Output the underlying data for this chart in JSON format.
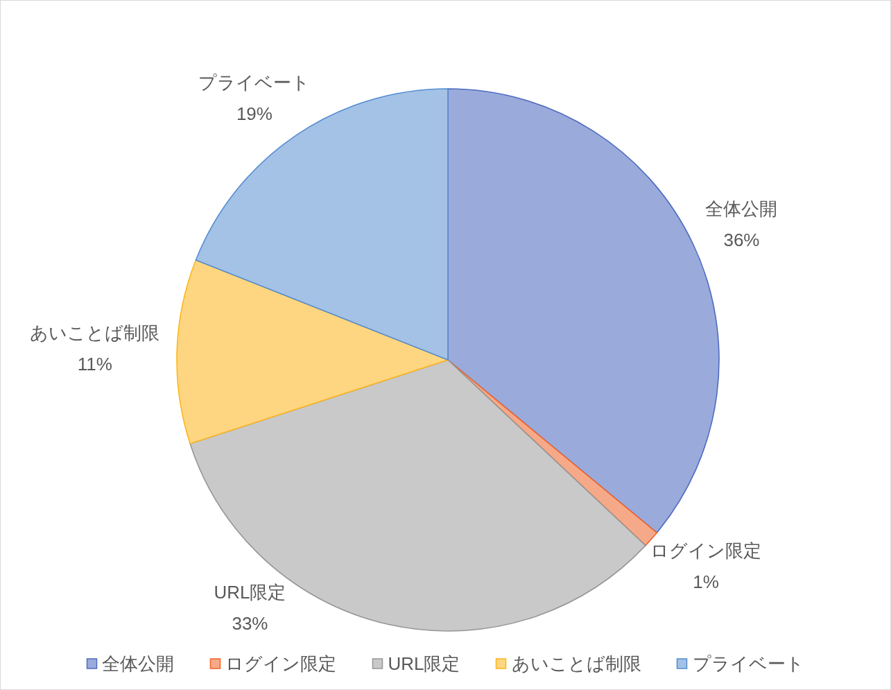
{
  "chart_data": {
    "type": "pie",
    "categories": [
      "全体公開",
      "ログイン限定",
      "URL限定",
      "あいことば制限",
      "プライベート"
    ],
    "values": [
      36,
      1,
      33,
      11,
      19
    ],
    "value_labels": [
      "36%",
      "1%",
      "33%",
      "11%",
      "19%"
    ],
    "colors": [
      "#9aaadb",
      "#f6a988",
      "#c9c9c9",
      "#fed681",
      "#a4c2e6"
    ],
    "legend": "bottom"
  }
}
